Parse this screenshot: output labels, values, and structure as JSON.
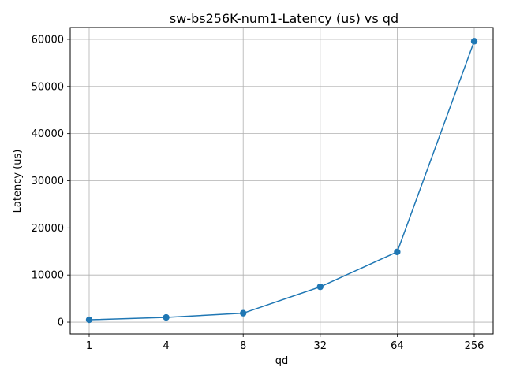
{
  "chart_data": {
    "type": "line",
    "title": "sw-bs256K-num1-Latency (us) vs qd",
    "xlabel": "qd",
    "ylabel": "Latency (us)",
    "categories": [
      "1",
      "4",
      "8",
      "32",
      "64",
      "256"
    ],
    "series": [
      {
        "values": [
          500,
          1000,
          1900,
          7500,
          14900,
          59600
        ],
        "color": "#1f77b4",
        "marker": "circle"
      }
    ],
    "yticks": [
      0,
      10000,
      20000,
      30000,
      40000,
      50000,
      60000
    ],
    "ylim": [
      -2500,
      62500
    ],
    "grid": true
  }
}
